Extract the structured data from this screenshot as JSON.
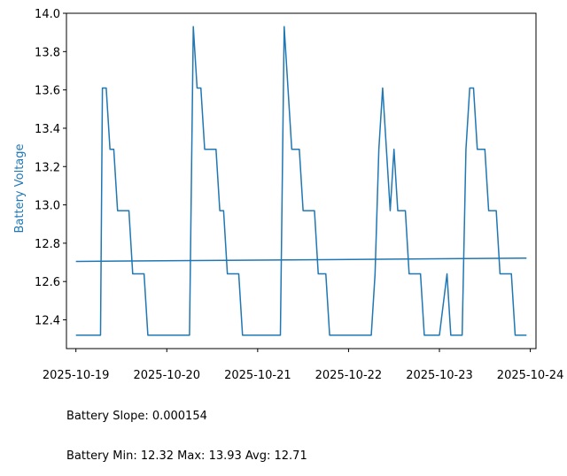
{
  "chart_data": {
    "type": "line",
    "ylabel": "Battery Voltage",
    "xlim": [
      "2025-10-18T21:30",
      "2025-10-24T01:30"
    ],
    "ylim": [
      12.25,
      14.0
    ],
    "x_ticks": [
      "2025-10-19",
      "2025-10-20",
      "2025-10-21",
      "2025-10-22",
      "2025-10-23",
      "2025-10-24"
    ],
    "y_ticks": [
      "12.4",
      "12.6",
      "12.8",
      "13.0",
      "13.2",
      "13.4",
      "13.6",
      "13.8",
      "14.0"
    ],
    "line_color": "#1f77b4",
    "series": [
      {
        "points": [
          [
            "2025-10-19T00:00",
            12.32
          ],
          [
            "2025-10-19T06:30",
            12.32
          ],
          [
            "2025-10-19T07:00",
            13.61
          ],
          [
            "2025-10-19T08:00",
            13.61
          ],
          [
            "2025-10-19T09:00",
            13.29
          ],
          [
            "2025-10-19T10:00",
            13.29
          ],
          [
            "2025-10-19T11:00",
            12.97
          ],
          [
            "2025-10-19T14:00",
            12.97
          ],
          [
            "2025-10-19T15:00",
            12.64
          ],
          [
            "2025-10-19T18:00",
            12.64
          ],
          [
            "2025-10-19T19:00",
            12.32
          ],
          [
            "2025-10-20T06:00",
            12.32
          ],
          [
            "2025-10-20T07:00",
            13.93
          ],
          [
            "2025-10-20T08:00",
            13.61
          ],
          [
            "2025-10-20T09:00",
            13.61
          ],
          [
            "2025-10-20T10:00",
            13.29
          ],
          [
            "2025-10-20T13:00",
            13.29
          ],
          [
            "2025-10-20T14:00",
            12.97
          ],
          [
            "2025-10-20T15:00",
            12.97
          ],
          [
            "2025-10-20T16:00",
            12.64
          ],
          [
            "2025-10-20T19:00",
            12.64
          ],
          [
            "2025-10-20T20:00",
            12.32
          ],
          [
            "2025-10-21T06:00",
            12.32
          ],
          [
            "2025-10-21T07:00",
            13.93
          ],
          [
            "2025-10-21T09:00",
            13.29
          ],
          [
            "2025-10-21T11:00",
            13.29
          ],
          [
            "2025-10-21T12:00",
            12.97
          ],
          [
            "2025-10-21T15:00",
            12.97
          ],
          [
            "2025-10-21T16:00",
            12.64
          ],
          [
            "2025-10-21T18:00",
            12.64
          ],
          [
            "2025-10-21T19:00",
            12.32
          ],
          [
            "2025-10-22T06:00",
            12.32
          ],
          [
            "2025-10-22T07:00",
            12.64
          ],
          [
            "2025-10-22T08:00",
            13.29
          ],
          [
            "2025-10-22T09:00",
            13.61
          ],
          [
            "2025-10-22T11:00",
            12.97
          ],
          [
            "2025-10-22T12:00",
            13.29
          ],
          [
            "2025-10-22T13:00",
            12.97
          ],
          [
            "2025-10-22T15:00",
            12.97
          ],
          [
            "2025-10-22T16:00",
            12.64
          ],
          [
            "2025-10-22T19:00",
            12.64
          ],
          [
            "2025-10-22T20:00",
            12.32
          ],
          [
            "2025-10-23T00:00",
            12.32
          ],
          [
            "2025-10-23T02:00",
            12.64
          ],
          [
            "2025-10-23T03:00",
            12.32
          ],
          [
            "2025-10-23T06:00",
            12.32
          ],
          [
            "2025-10-23T07:00",
            13.29
          ],
          [
            "2025-10-23T08:00",
            13.61
          ],
          [
            "2025-10-23T09:00",
            13.61
          ],
          [
            "2025-10-23T10:00",
            13.29
          ],
          [
            "2025-10-23T12:00",
            13.29
          ],
          [
            "2025-10-23T13:00",
            12.97
          ],
          [
            "2025-10-23T15:00",
            12.97
          ],
          [
            "2025-10-23T16:00",
            12.64
          ],
          [
            "2025-10-23T19:00",
            12.64
          ],
          [
            "2025-10-23T20:00",
            12.32
          ],
          [
            "2025-10-23T23:00",
            12.32
          ]
        ]
      },
      {
        "points": [
          [
            "2025-10-19T00:00",
            12.705
          ],
          [
            "2025-10-23T23:00",
            12.722
          ]
        ]
      }
    ],
    "grid": false,
    "annotations": [
      "Battery Slope: 0.000154",
      "Battery Min: 12.32 Max: 13.93 Avg: 12.71"
    ]
  }
}
